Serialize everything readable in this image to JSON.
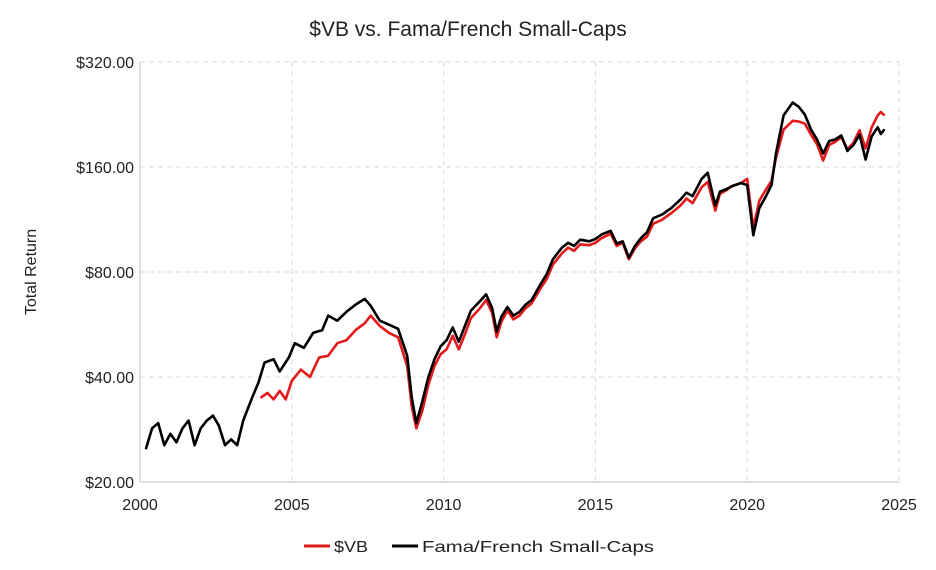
{
  "chart_data": {
    "type": "line",
    "title": "$VB vs. Fama/French Small-Caps",
    "xlabel": "",
    "ylabel": "Total Return",
    "y_scale": "log2",
    "xlim": [
      2000,
      2025
    ],
    "ylim": [
      20,
      320
    ],
    "x_ticks": [
      2000,
      2005,
      2010,
      2015,
      2020,
      2025
    ],
    "x_tick_labels": [
      "2000",
      "2005",
      "2010",
      "2015",
      "2020",
      "2025"
    ],
    "y_ticks": [
      20,
      40,
      80,
      160,
      320
    ],
    "y_tick_labels": [
      "$20.00",
      "$40.00",
      "$80.00",
      "$160.00",
      "$320.00"
    ],
    "grid": true,
    "legend_position": "bottom",
    "series": [
      {
        "name": "$VB",
        "color": "#e31a1c",
        "points": [
          [
            2004.0,
            35.0
          ],
          [
            2004.2,
            36.0
          ],
          [
            2004.4,
            34.5
          ],
          [
            2004.6,
            36.5
          ],
          [
            2004.8,
            34.5
          ],
          [
            2005.0,
            39.0
          ],
          [
            2005.3,
            42.0
          ],
          [
            2005.6,
            40.0
          ],
          [
            2005.9,
            45.5
          ],
          [
            2006.2,
            46.0
          ],
          [
            2006.5,
            50.0
          ],
          [
            2006.8,
            51.0
          ],
          [
            2007.1,
            54.5
          ],
          [
            2007.4,
            57.0
          ],
          [
            2007.6,
            60.0
          ],
          [
            2007.9,
            56.0
          ],
          [
            2008.2,
            53.5
          ],
          [
            2008.5,
            52.0
          ],
          [
            2008.8,
            43.0
          ],
          [
            2008.95,
            33.0
          ],
          [
            2009.1,
            28.5
          ],
          [
            2009.3,
            32.0
          ],
          [
            2009.5,
            38.0
          ],
          [
            2009.7,
            43.0
          ],
          [
            2009.9,
            46.5
          ],
          [
            2010.1,
            48.0
          ],
          [
            2010.3,
            52.5
          ],
          [
            2010.5,
            48.0
          ],
          [
            2010.7,
            53.0
          ],
          [
            2010.9,
            59.0
          ],
          [
            2011.2,
            63.0
          ],
          [
            2011.4,
            66.5
          ],
          [
            2011.6,
            61.0
          ],
          [
            2011.75,
            52.0
          ],
          [
            2011.9,
            57.5
          ],
          [
            2012.1,
            62.0
          ],
          [
            2012.3,
            58.5
          ],
          [
            2012.5,
            60.0
          ],
          [
            2012.7,
            63.0
          ],
          [
            2012.9,
            65.0
          ],
          [
            2013.2,
            72.0
          ],
          [
            2013.4,
            76.5
          ],
          [
            2013.6,
            84.0
          ],
          [
            2013.9,
            90.5
          ],
          [
            2014.1,
            94.0
          ],
          [
            2014.3,
            92.0
          ],
          [
            2014.5,
            96.0
          ],
          [
            2014.8,
            95.5
          ],
          [
            2015.0,
            97.0
          ],
          [
            2015.2,
            100.0
          ],
          [
            2015.5,
            103.0
          ],
          [
            2015.7,
            95.0
          ],
          [
            2015.9,
            97.0
          ],
          [
            2016.1,
            87.0
          ],
          [
            2016.3,
            93.5
          ],
          [
            2016.5,
            98.0
          ],
          [
            2016.7,
            101.0
          ],
          [
            2016.9,
            110.0
          ],
          [
            2017.2,
            113.0
          ],
          [
            2017.5,
            118.0
          ],
          [
            2017.8,
            124.0
          ],
          [
            2018.0,
            130.0
          ],
          [
            2018.2,
            126.0
          ],
          [
            2018.5,
            140.0
          ],
          [
            2018.7,
            145.0
          ],
          [
            2018.95,
            120.0
          ],
          [
            2019.1,
            134.0
          ],
          [
            2019.3,
            137.0
          ],
          [
            2019.5,
            141.0
          ],
          [
            2019.8,
            144.0
          ],
          [
            2020.0,
            148.0
          ],
          [
            2020.2,
            107.0
          ],
          [
            2020.4,
            128.0
          ],
          [
            2020.6,
            137.0
          ],
          [
            2020.8,
            146.0
          ],
          [
            2020.95,
            170.0
          ],
          [
            2021.2,
            205.0
          ],
          [
            2021.5,
            217.0
          ],
          [
            2021.7,
            216.0
          ],
          [
            2021.9,
            213.0
          ],
          [
            2022.1,
            198.0
          ],
          [
            2022.3,
            186.0
          ],
          [
            2022.5,
            167.0
          ],
          [
            2022.7,
            185.0
          ],
          [
            2022.9,
            189.0
          ],
          [
            2023.1,
            195.0
          ],
          [
            2023.3,
            180.0
          ],
          [
            2023.5,
            188.0
          ],
          [
            2023.7,
            204.0
          ],
          [
            2023.9,
            181.0
          ],
          [
            2024.1,
            208.0
          ],
          [
            2024.3,
            225.0
          ],
          [
            2024.4,
            230.0
          ],
          [
            2024.5,
            226.0
          ]
        ]
      },
      {
        "name": "Fama/French Small-Caps",
        "color": "#000000",
        "points": [
          [
            2000.2,
            25.0
          ],
          [
            2000.4,
            28.5
          ],
          [
            2000.6,
            29.5
          ],
          [
            2000.8,
            25.5
          ],
          [
            2001.0,
            27.5
          ],
          [
            2001.2,
            26.0
          ],
          [
            2001.4,
            28.5
          ],
          [
            2001.6,
            30.0
          ],
          [
            2001.8,
            25.5
          ],
          [
            2002.0,
            28.5
          ],
          [
            2002.2,
            30.0
          ],
          [
            2002.4,
            31.0
          ],
          [
            2002.6,
            29.0
          ],
          [
            2002.8,
            25.5
          ],
          [
            2003.0,
            26.5
          ],
          [
            2003.2,
            25.5
          ],
          [
            2003.4,
            30.0
          ],
          [
            2003.7,
            35.0
          ],
          [
            2003.9,
            38.5
          ],
          [
            2004.1,
            44.0
          ],
          [
            2004.4,
            45.0
          ],
          [
            2004.6,
            41.5
          ],
          [
            2004.9,
            45.5
          ],
          [
            2005.1,
            50.0
          ],
          [
            2005.4,
            48.5
          ],
          [
            2005.7,
            53.5
          ],
          [
            2006.0,
            54.5
          ],
          [
            2006.2,
            60.0
          ],
          [
            2006.5,
            58.0
          ],
          [
            2006.8,
            61.5
          ],
          [
            2007.1,
            64.5
          ],
          [
            2007.4,
            67.0
          ],
          [
            2007.6,
            64.0
          ],
          [
            2007.9,
            58.0
          ],
          [
            2008.2,
            56.5
          ],
          [
            2008.5,
            55.0
          ],
          [
            2008.8,
            46.0
          ],
          [
            2008.95,
            35.0
          ],
          [
            2009.1,
            29.5
          ],
          [
            2009.3,
            34.0
          ],
          [
            2009.5,
            40.0
          ],
          [
            2009.7,
            45.0
          ],
          [
            2009.9,
            49.0
          ],
          [
            2010.1,
            51.0
          ],
          [
            2010.3,
            55.5
          ],
          [
            2010.5,
            50.5
          ],
          [
            2010.7,
            56.0
          ],
          [
            2010.9,
            62.0
          ],
          [
            2011.2,
            66.0
          ],
          [
            2011.4,
            69.0
          ],
          [
            2011.6,
            63.0
          ],
          [
            2011.75,
            54.0
          ],
          [
            2011.9,
            59.5
          ],
          [
            2012.1,
            63.5
          ],
          [
            2012.3,
            60.0
          ],
          [
            2012.5,
            61.5
          ],
          [
            2012.7,
            64.5
          ],
          [
            2012.9,
            66.5
          ],
          [
            2013.2,
            74.0
          ],
          [
            2013.4,
            79.0
          ],
          [
            2013.6,
            87.0
          ],
          [
            2013.9,
            94.0
          ],
          [
            2014.1,
            97.0
          ],
          [
            2014.3,
            95.0
          ],
          [
            2014.5,
            99.0
          ],
          [
            2014.8,
            98.0
          ],
          [
            2015.0,
            99.5
          ],
          [
            2015.2,
            102.5
          ],
          [
            2015.5,
            105.0
          ],
          [
            2015.7,
            96.5
          ],
          [
            2015.9,
            98.0
          ],
          [
            2016.1,
            88.0
          ],
          [
            2016.3,
            95.0
          ],
          [
            2016.5,
            100.0
          ],
          [
            2016.7,
            104.0
          ],
          [
            2016.9,
            114.0
          ],
          [
            2017.2,
            117.0
          ],
          [
            2017.5,
            122.0
          ],
          [
            2017.8,
            129.0
          ],
          [
            2018.0,
            135.0
          ],
          [
            2018.2,
            132.0
          ],
          [
            2018.5,
            148.0
          ],
          [
            2018.7,
            154.0
          ],
          [
            2018.95,
            124.0
          ],
          [
            2019.1,
            136.0
          ],
          [
            2019.3,
            138.0
          ],
          [
            2019.5,
            141.0
          ],
          [
            2019.8,
            144.0
          ],
          [
            2020.0,
            142.0
          ],
          [
            2020.2,
            102.0
          ],
          [
            2020.4,
            122.0
          ],
          [
            2020.6,
            131.0
          ],
          [
            2020.8,
            142.0
          ],
          [
            2020.95,
            175.0
          ],
          [
            2021.2,
            225.0
          ],
          [
            2021.5,
            245.0
          ],
          [
            2021.7,
            238.0
          ],
          [
            2021.9,
            226.0
          ],
          [
            2022.1,
            205.0
          ],
          [
            2022.3,
            192.0
          ],
          [
            2022.5,
            175.0
          ],
          [
            2022.7,
            190.0
          ],
          [
            2022.9,
            192.0
          ],
          [
            2023.1,
            197.0
          ],
          [
            2023.3,
            178.0
          ],
          [
            2023.5,
            185.0
          ],
          [
            2023.7,
            198.0
          ],
          [
            2023.9,
            168.0
          ],
          [
            2024.1,
            196.0
          ],
          [
            2024.3,
            208.0
          ],
          [
            2024.4,
            199.0
          ],
          [
            2024.5,
            204.0
          ]
        ]
      }
    ]
  }
}
